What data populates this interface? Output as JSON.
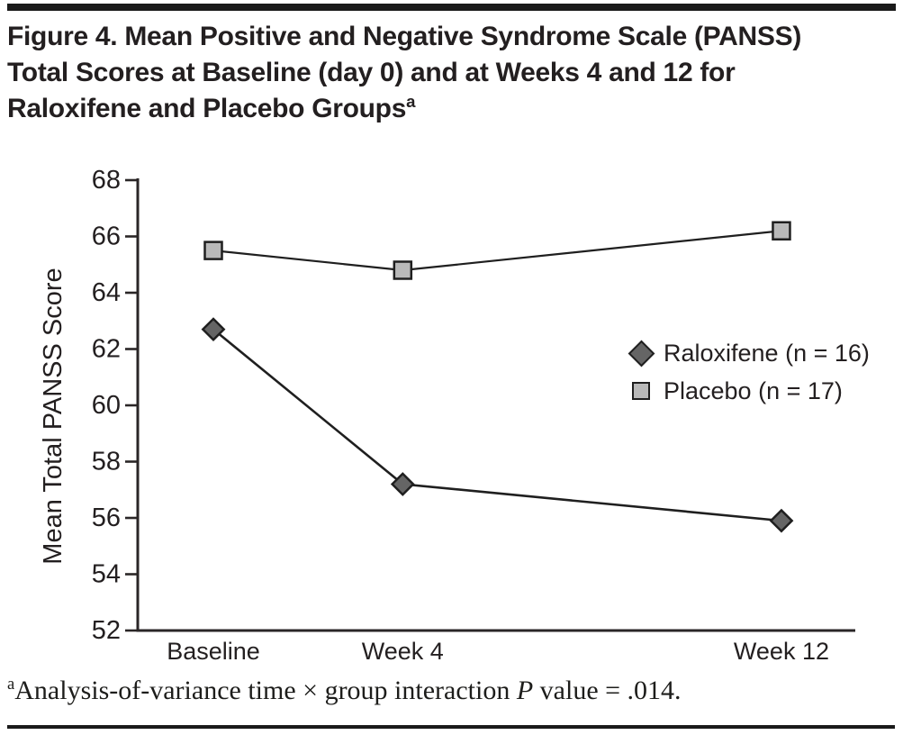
{
  "header": {
    "title_lines": [
      "Figure 4. Mean Positive and Negative Syndrome Scale (PANSS)",
      "Total Scores at Baseline (day 0) and at Weeks 4 and 12 for",
      "Raloxifene and Placebo Groups"
    ],
    "title_superscript": "a"
  },
  "footnote": {
    "superscript": "a",
    "text_before_p": "Analysis-of-variance time × group interaction ",
    "p_symbol": "P",
    "text_after_p": " value = .014."
  },
  "chart_data": {
    "type": "line",
    "title": "",
    "xlabel": "",
    "ylabel": "Mean Total PANSS Score",
    "categories": [
      "Baseline",
      "Week 4",
      "Week 12"
    ],
    "x_weeks": [
      0,
      4,
      12
    ],
    "series": [
      {
        "name": "Raloxifene (n = 16)",
        "marker": "diamond",
        "marker_fill": "#656565",
        "values": [
          62.7,
          57.2,
          55.9
        ]
      },
      {
        "name": "Placebo (n = 17)",
        "marker": "square",
        "marker_fill": "#b9b9b9",
        "values": [
          65.5,
          64.8,
          66.2
        ]
      }
    ],
    "ylim": [
      52,
      68
    ],
    "yticks": [
      52,
      54,
      56,
      58,
      60,
      62,
      64,
      66,
      68
    ],
    "grid": false,
    "legend_position": "center-right",
    "line_color": "#1f1f1f",
    "axis_color": "#2a2627"
  }
}
